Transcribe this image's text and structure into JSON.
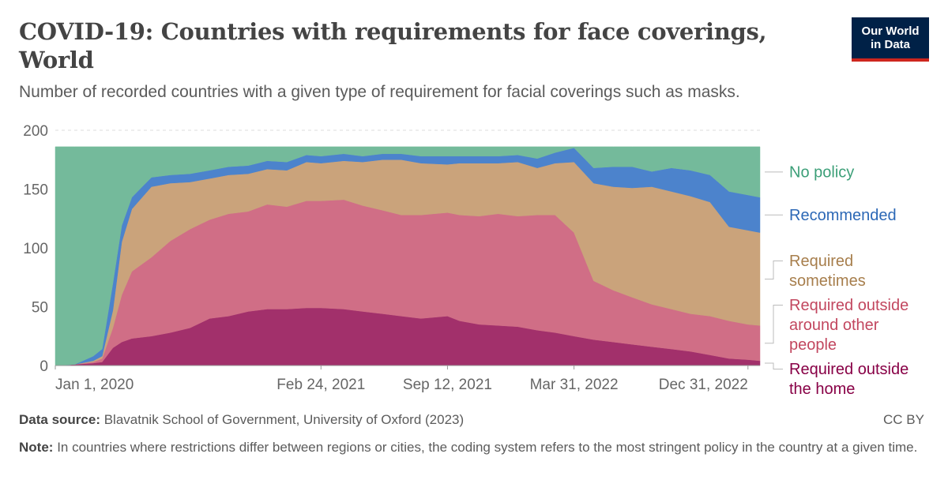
{
  "header": {
    "title": "COVID-19: Countries with requirements for face coverings, World",
    "subtitle": "Number of recorded countries with a given type of requirement for facial coverings such as masks.",
    "logo_line1": "Our World",
    "logo_line2": "in Data"
  },
  "footer": {
    "source_label": "Data source:",
    "source_text": "Blavatnik School of Government, University of Oxford (2023)",
    "license": "CC BY",
    "note_label": "Note:",
    "note_text": "In countries where restrictions differ between regions or cities, the coding system refers to the most stringent policy in the country at a given time."
  },
  "chart_data": {
    "type": "area",
    "stacked": true,
    "title": "COVID-19: Countries with requirements for face coverings, World",
    "subtitle": "Number of recorded countries with a given type of requirement for facial coverings such as masks.",
    "xlabel": "",
    "ylabel": "",
    "ylim": [
      0,
      200
    ],
    "yticks": [
      0,
      50,
      100,
      150,
      200
    ],
    "grid": "horizontal dashed",
    "legend_position": "right (inline labels)",
    "x_range": [
      "2020-01-01",
      "2023-01-19"
    ],
    "x_tick_labels": [
      {
        "date": "2020-01-01",
        "label": "Jan 1, 2020"
      },
      {
        "date": "2021-02-24",
        "label": "Feb 24, 2021"
      },
      {
        "date": "2021-09-12",
        "label": "Sep 12, 2021"
      },
      {
        "date": "2022-03-31",
        "label": "Mar 31, 2022"
      },
      {
        "date": "2022-12-31",
        "label": "Dec 31, 2022"
      }
    ],
    "x": [
      "2020-01-01",
      "2020-02-01",
      "2020-03-01",
      "2020-03-15",
      "2020-04-01",
      "2020-04-15",
      "2020-05-01",
      "2020-06-01",
      "2020-07-01",
      "2020-08-01",
      "2020-09-01",
      "2020-10-01",
      "2020-11-01",
      "2020-12-01",
      "2021-01-01",
      "2021-02-01",
      "2021-02-24",
      "2021-04-01",
      "2021-05-01",
      "2021-06-01",
      "2021-07-01",
      "2021-08-01",
      "2021-09-12",
      "2021-10-01",
      "2021-11-01",
      "2021-12-01",
      "2022-01-01",
      "2022-02-01",
      "2022-03-01",
      "2022-03-31",
      "2022-05-01",
      "2022-06-01",
      "2022-07-01",
      "2022-08-01",
      "2022-09-01",
      "2022-10-01",
      "2022-11-01",
      "2022-12-01",
      "2022-12-31",
      "2023-01-19"
    ],
    "series": [
      {
        "name": "Required outside the home",
        "color": "#a2306b",
        "values": [
          0,
          1,
          2,
          3,
          15,
          20,
          23,
          25,
          28,
          32,
          40,
          42,
          46,
          48,
          48,
          49,
          49,
          48,
          46,
          44,
          42,
          40,
          42,
          38,
          35,
          34,
          33,
          30,
          28,
          25,
          22,
          20,
          18,
          16,
          14,
          12,
          9,
          6,
          5,
          4
        ]
      },
      {
        "name": "Required outside around other people",
        "color": "#d06e86",
        "values": [
          0,
          0,
          1,
          3,
          17,
          40,
          57,
          67,
          78,
          84,
          84,
          87,
          85,
          89,
          87,
          91,
          91,
          93,
          90,
          88,
          86,
          88,
          88,
          90,
          92,
          95,
          94,
          98,
          100,
          88,
          50,
          44,
          40,
          36,
          34,
          32,
          33,
          32,
          30,
          30
        ]
      },
      {
        "name": "Required sometimes",
        "color": "#caa37b",
        "values": [
          0,
          0,
          1,
          2,
          15,
          45,
          53,
          60,
          49,
          40,
          35,
          33,
          32,
          30,
          31,
          33,
          32,
          33,
          37,
          43,
          47,
          44,
          41,
          44,
          45,
          43,
          46,
          40,
          44,
          60,
          83,
          88,
          93,
          100,
          100,
          100,
          97,
          80,
          80,
          79
        ]
      },
      {
        "name": "Recommended",
        "color": "#4c83cc",
        "values": [
          0,
          0,
          4,
          6,
          23,
          14,
          10,
          8,
          7,
          7,
          7,
          7,
          7,
          7,
          7,
          6,
          6,
          6,
          5,
          5,
          5,
          6,
          7,
          6,
          6,
          6,
          6,
          8,
          9,
          12,
          13,
          17,
          18,
          13,
          20,
          22,
          23,
          30,
          30,
          30
        ]
      },
      {
        "name": "No policy",
        "color": "#74ba9b",
        "values": [
          186,
          185,
          178,
          172,
          116,
          67,
          43,
          26,
          24,
          23,
          20,
          17,
          16,
          12,
          13,
          7,
          8,
          6,
          8,
          6,
          6,
          8,
          8,
          8,
          8,
          8,
          7,
          10,
          5,
          1,
          18,
          17,
          17,
          21,
          18,
          20,
          24,
          38,
          41,
          43
        ]
      }
    ],
    "legend": [
      {
        "name": "No policy",
        "lines": [
          "No policy"
        ],
        "color": "#3c9f78"
      },
      {
        "name": "Recommended",
        "lines": [
          "Recommended"
        ],
        "color": "#2c68b6"
      },
      {
        "name": "Required sometimes",
        "lines": [
          "Required",
          "sometimes"
        ],
        "color": "#a77e4c"
      },
      {
        "name": "Required outside around other people",
        "lines": [
          "Required outside",
          "around other",
          "people"
        ],
        "color": "#c2475f"
      },
      {
        "name": "Required outside the home",
        "lines": [
          "Required outside",
          "the home"
        ],
        "color": "#880046"
      }
    ]
  }
}
